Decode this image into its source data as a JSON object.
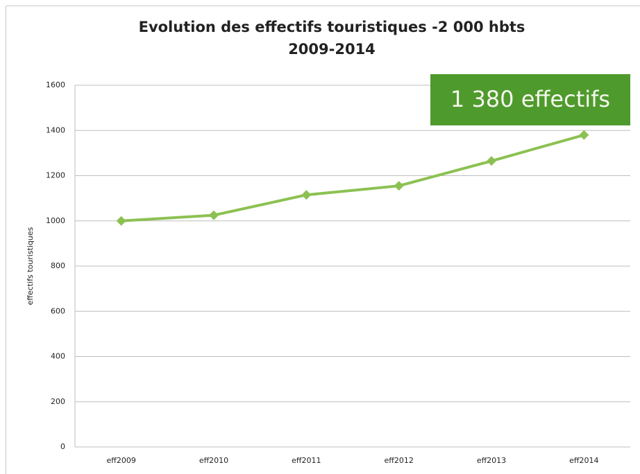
{
  "chart_data": {
    "type": "line",
    "title": "Evolution des effectifs touristiques -2 000 hbts",
    "subtitle": "2009-2014",
    "y_label": "effectifs touristiques",
    "annotation": "1 380 effectifs",
    "categories": [
      "eff2009",
      "eff2010",
      "eff2011",
      "eff2012",
      "eff2013",
      "eff2014"
    ],
    "values": [
      1000,
      1025,
      1115,
      1155,
      1265,
      1380
    ],
    "color": "#8cc152",
    "annotation_color": "#4f9a2c",
    "ylim": [
      0,
      1600
    ],
    "yticks": [
      0,
      200,
      400,
      600,
      800,
      1000,
      1200,
      1400,
      1600
    ],
    "grid": true
  }
}
